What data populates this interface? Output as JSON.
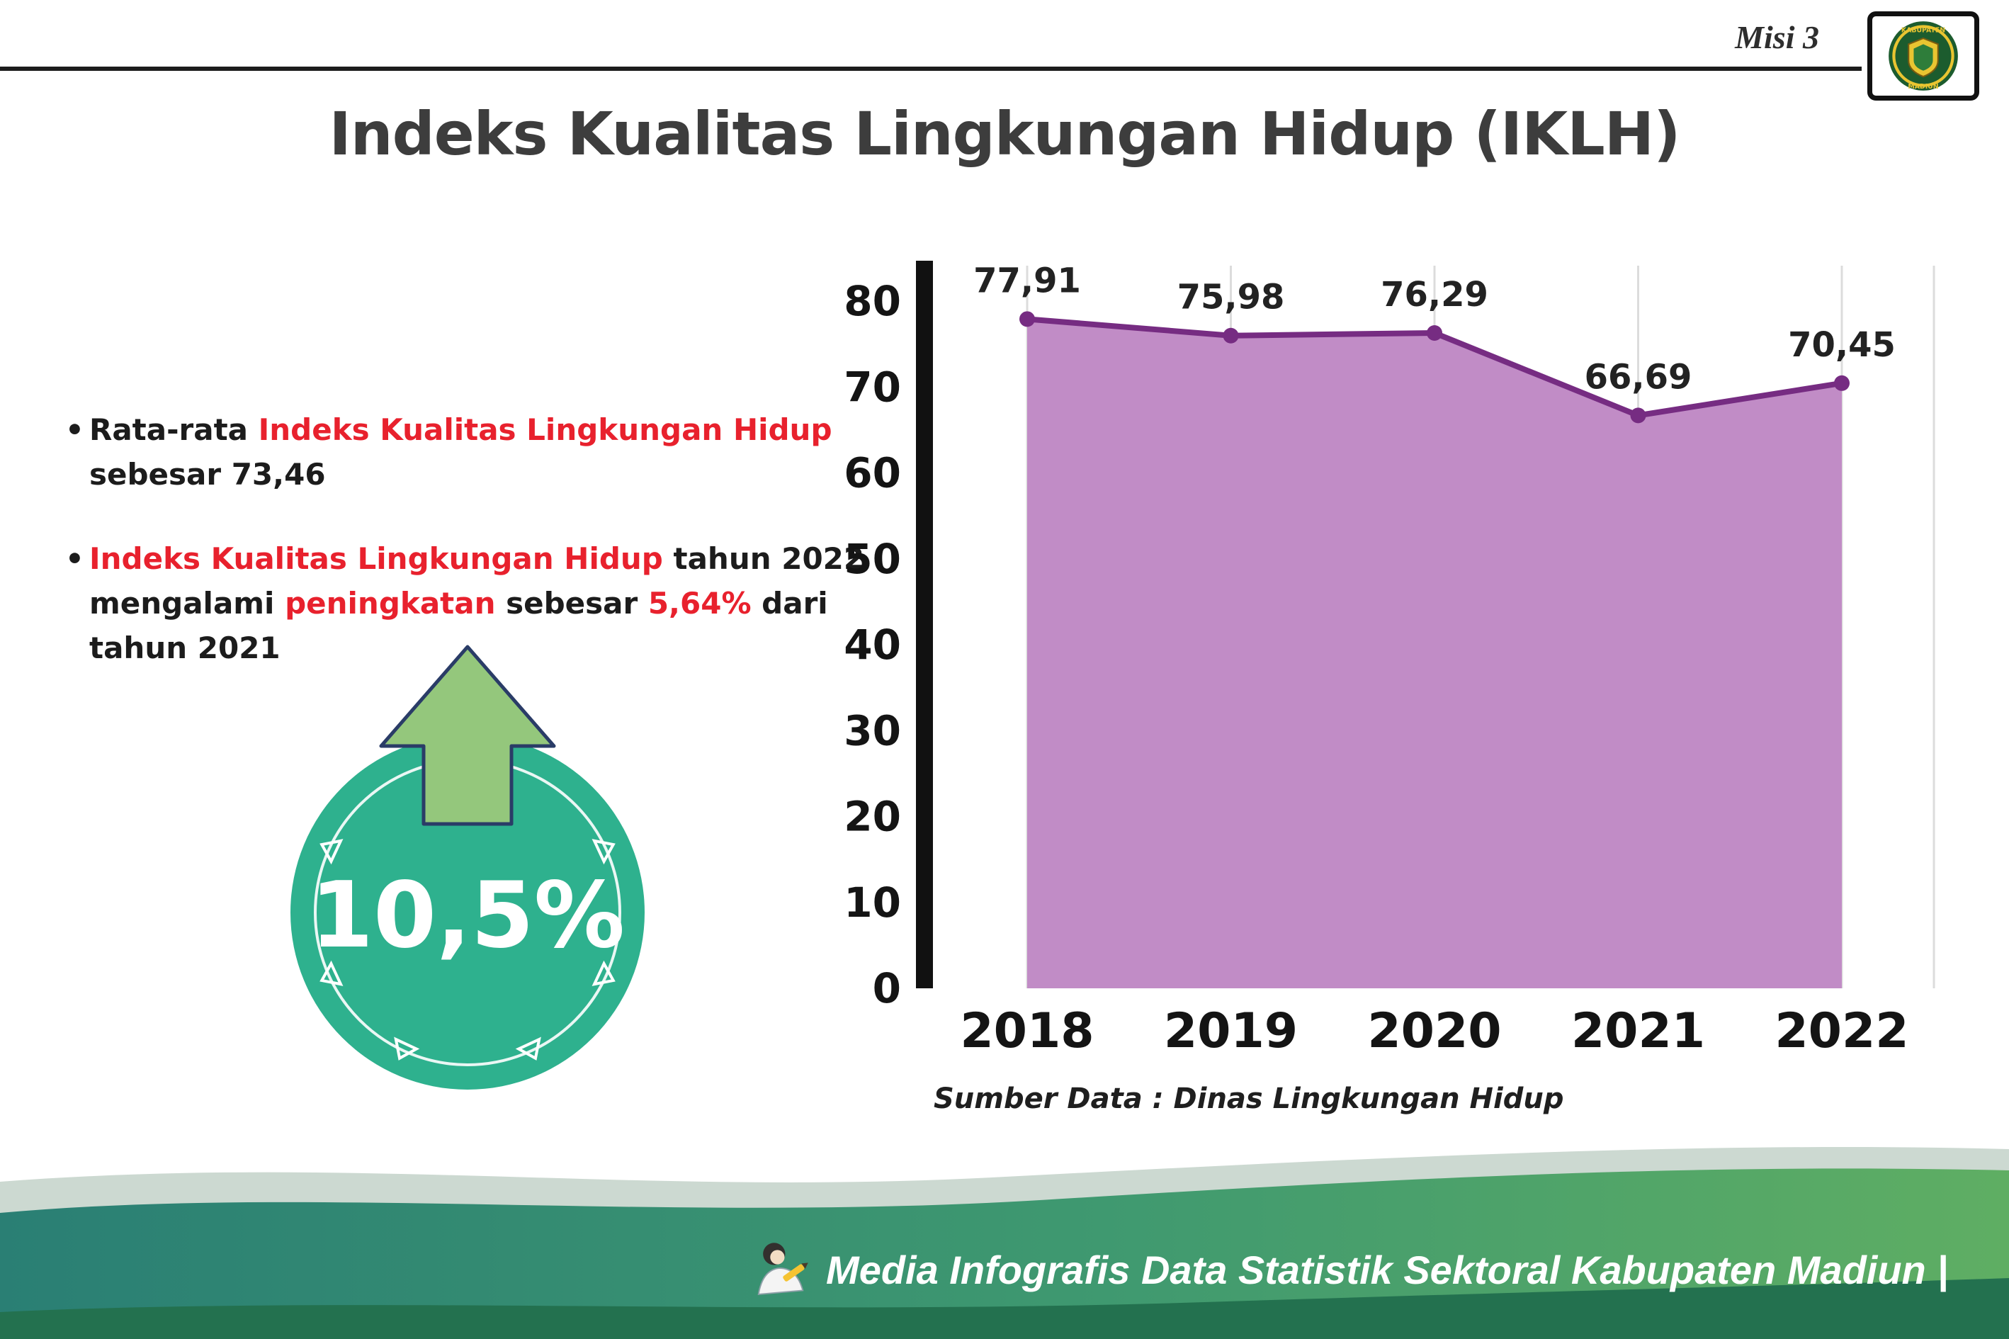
{
  "header": {
    "misi_label": "Misi 3",
    "title": "Indeks Kualitas Lingkungan Hidup (IKLH)",
    "logo": {
      "text_top": "KABUPATEN",
      "text_bottom": "MADIUN"
    }
  },
  "left_panel": {
    "bullets": [
      {
        "segments": [
          {
            "text": "Rata-rata ",
            "highlight": false
          },
          {
            "text": "Indeks Kualitas Lingkungan Hidup",
            "highlight": true
          },
          {
            "text": " sebesar 73,46",
            "highlight": false
          }
        ]
      },
      {
        "segments": [
          {
            "text": "Indeks Kualitas Lingkungan Hidup",
            "highlight": true
          },
          {
            "text": " tahun 2022 mengalami ",
            "highlight": false
          },
          {
            "text": "peningkatan",
            "highlight": true
          },
          {
            "text": " sebesar ",
            "highlight": false
          },
          {
            "text": "5,64%",
            "highlight": true
          },
          {
            "text": " dari tahun 2021",
            "highlight": false
          }
        ]
      }
    ],
    "badge": {
      "value": "10,5%"
    }
  },
  "chart_data": {
    "type": "area",
    "title": "Indeks Kualitas Lingkungan Hidup (IKLH)",
    "categories": [
      "2018",
      "2019",
      "2020",
      "2021",
      "2022"
    ],
    "values": [
      77.91,
      75.98,
      76.29,
      66.69,
      70.45
    ],
    "point_labels": [
      "77,91",
      "75,98",
      "76,29",
      "66,69",
      "70,45"
    ],
    "ylim": [
      0,
      80
    ],
    "yticks": [
      0,
      10,
      20,
      30,
      40,
      50,
      60,
      70,
      80
    ],
    "grid": "vertical",
    "legend": "none",
    "fill_color": "#c18cc6",
    "line_color": "#762c82",
    "source": "Sumber Data : Dinas Lingkungan Hidup"
  },
  "footer": {
    "caption": "Media Infografis Data Statistik Sektoral Kabupaten Madiun |"
  },
  "colors": {
    "highlight_red": "#e8212d",
    "badge_teal": "#2eb18e",
    "arrow_green": "#94c77c",
    "area_fill_purple": "#c18cc6",
    "line_purple": "#762c82"
  }
}
